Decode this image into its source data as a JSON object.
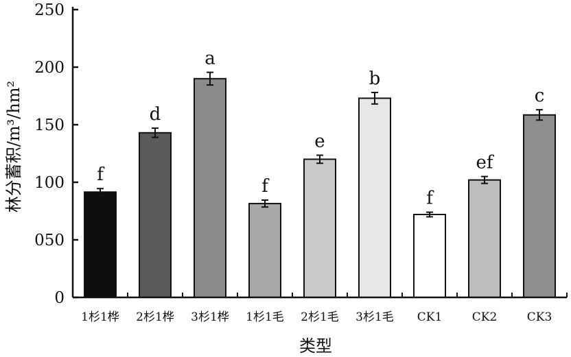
{
  "chart_data": {
    "type": "bar",
    "xlabel": "类型",
    "ylabel": "林分蓄积/m³/hm²",
    "ylim": [
      0,
      250
    ],
    "yticks": [
      {
        "value": 0,
        "label": "0"
      },
      {
        "value": 50,
        "label": "050"
      },
      {
        "value": 100,
        "label": "100"
      },
      {
        "value": 150,
        "label": "150"
      },
      {
        "value": 200,
        "label": "200"
      },
      {
        "value": 250,
        "label": "250"
      }
    ],
    "categories": [
      "1杉1桦",
      "2杉1桦",
      "3杉1桦",
      "1杉1毛",
      "2杉1毛",
      "3杉1毛",
      "CK1",
      "CK2",
      "CK3"
    ],
    "values": [
      91.5,
      143,
      190,
      81.5,
      120,
      173,
      72,
      102,
      158.5
    ],
    "errors": [
      3,
      4,
      5.5,
      3,
      3.5,
      5,
      2,
      3,
      4.5
    ],
    "significance": [
      "f",
      "d",
      "a",
      "f",
      "e",
      "b",
      "f",
      "ef",
      "c"
    ],
    "colors": [
      "#0d0d0d",
      "#5a5a5a",
      "#8a8a8a",
      "#a9a9a9",
      "#cacaca",
      "#e8e8e8",
      "#ffffff",
      "#bdbdbd",
      "#8e8e8e"
    ],
    "grid": false,
    "legend": "none"
  }
}
